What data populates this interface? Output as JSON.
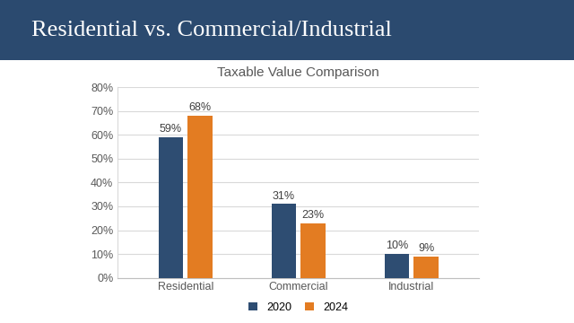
{
  "header": {
    "title": "Residential vs. Commercial/Industrial"
  },
  "chart_data": {
    "type": "bar",
    "title": "Taxable Value Comparison",
    "categories": [
      "Residential",
      "Commercial",
      "Industrial"
    ],
    "series": [
      {
        "name": "2020",
        "color": "#2e4d72",
        "values": [
          59,
          31,
          10
        ],
        "value_labels": [
          "59%",
          "31%",
          "10%"
        ]
      },
      {
        "name": "2024",
        "color": "#e37c22",
        "values": [
          68,
          23,
          9
        ],
        "value_labels": [
          "68%",
          "23%",
          "9%"
        ]
      }
    ],
    "ylim": [
      0,
      80
    ],
    "yticks": [
      {
        "value": 0,
        "label": "0%"
      },
      {
        "value": 10,
        "label": "10%"
      },
      {
        "value": 20,
        "label": "20%"
      },
      {
        "value": 30,
        "label": "30%"
      },
      {
        "value": 40,
        "label": "40%"
      },
      {
        "value": 50,
        "label": "50%"
      },
      {
        "value": 60,
        "label": "60%"
      },
      {
        "value": 70,
        "label": "70%"
      },
      {
        "value": 80,
        "label": "80%"
      }
    ],
    "grid": true,
    "data_labels": true,
    "legend": "lower center"
  }
}
